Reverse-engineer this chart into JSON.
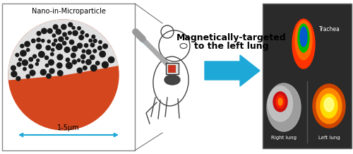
{
  "title_nim": "Nano-in-Microparticle",
  "scale_label": "1-5μm",
  "arrow_text_line1": "Magnetically-targeted",
  "arrow_text_line2": "to the left lung",
  "circle_color": "#D4471E",
  "cutout_bg": "#E0E0E0",
  "dot_color": "#1a1a1a",
  "arrow_color": "#1EA8D8",
  "scale_arrow_color": "#1EA8D8",
  "border_color": "#888888",
  "background_color": "#FFFFFF",
  "trachea_label": "Trachea",
  "right_lung_label": "Right lung",
  "left_lung_label": "Left lung"
}
